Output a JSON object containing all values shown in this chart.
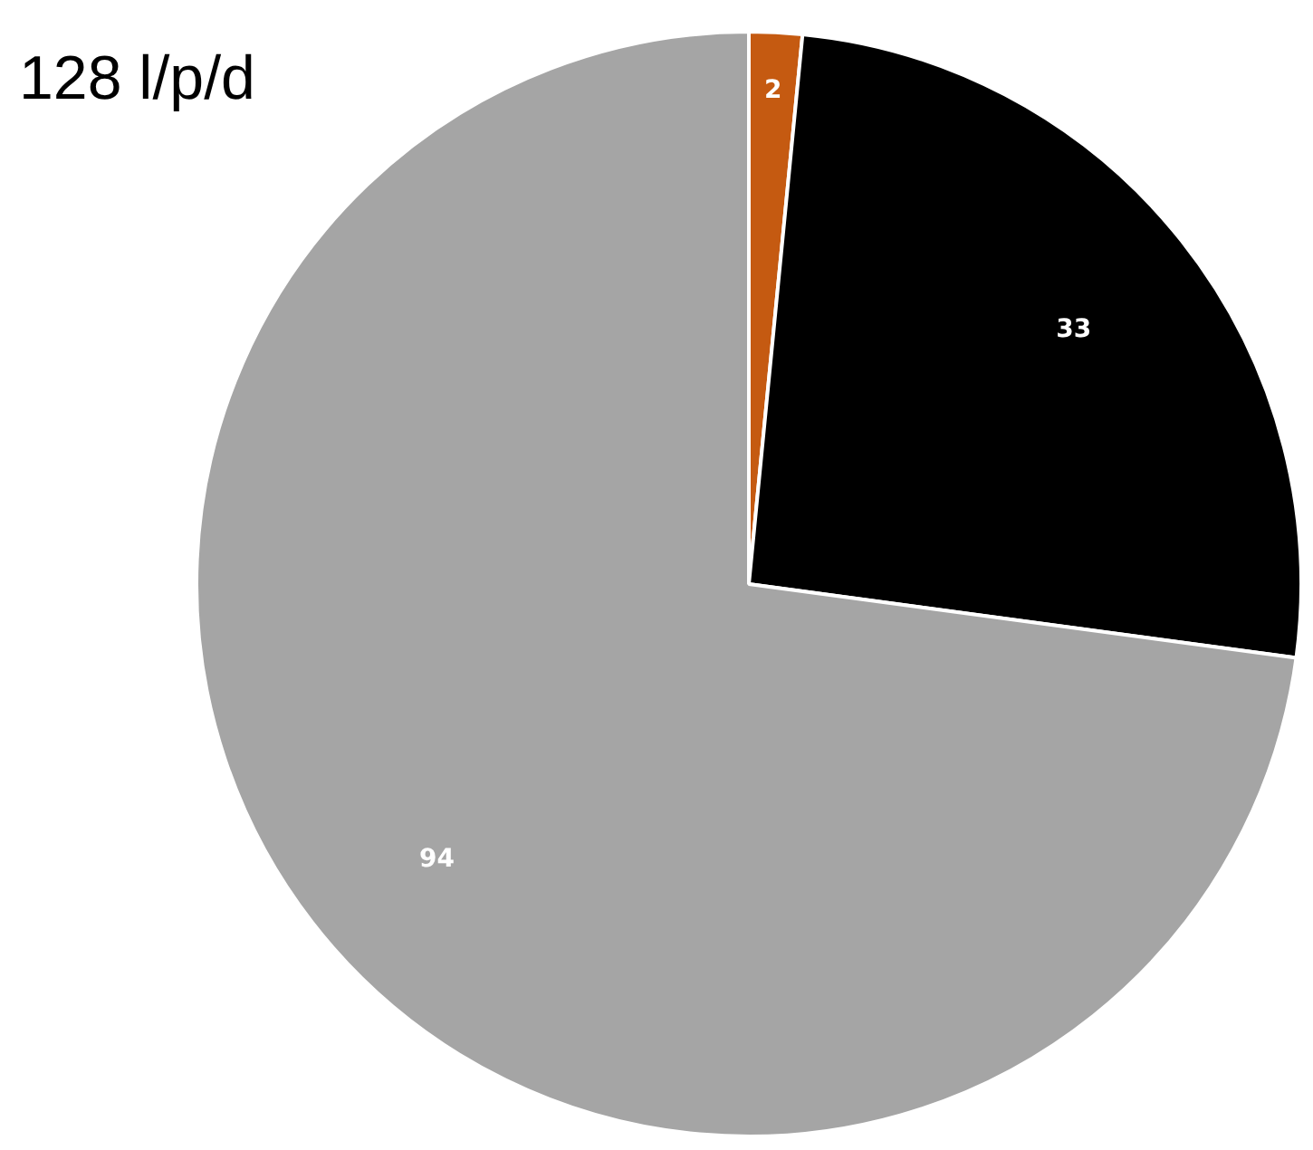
{
  "chart_data": {
    "type": "pie",
    "title": "128 l/p/d",
    "categories": [
      null,
      null,
      null
    ],
    "values": [
      2,
      33,
      94
    ],
    "colors": [
      "#c55a11",
      "#000000",
      "#a5a5a5"
    ],
    "data_labels": true
  }
}
